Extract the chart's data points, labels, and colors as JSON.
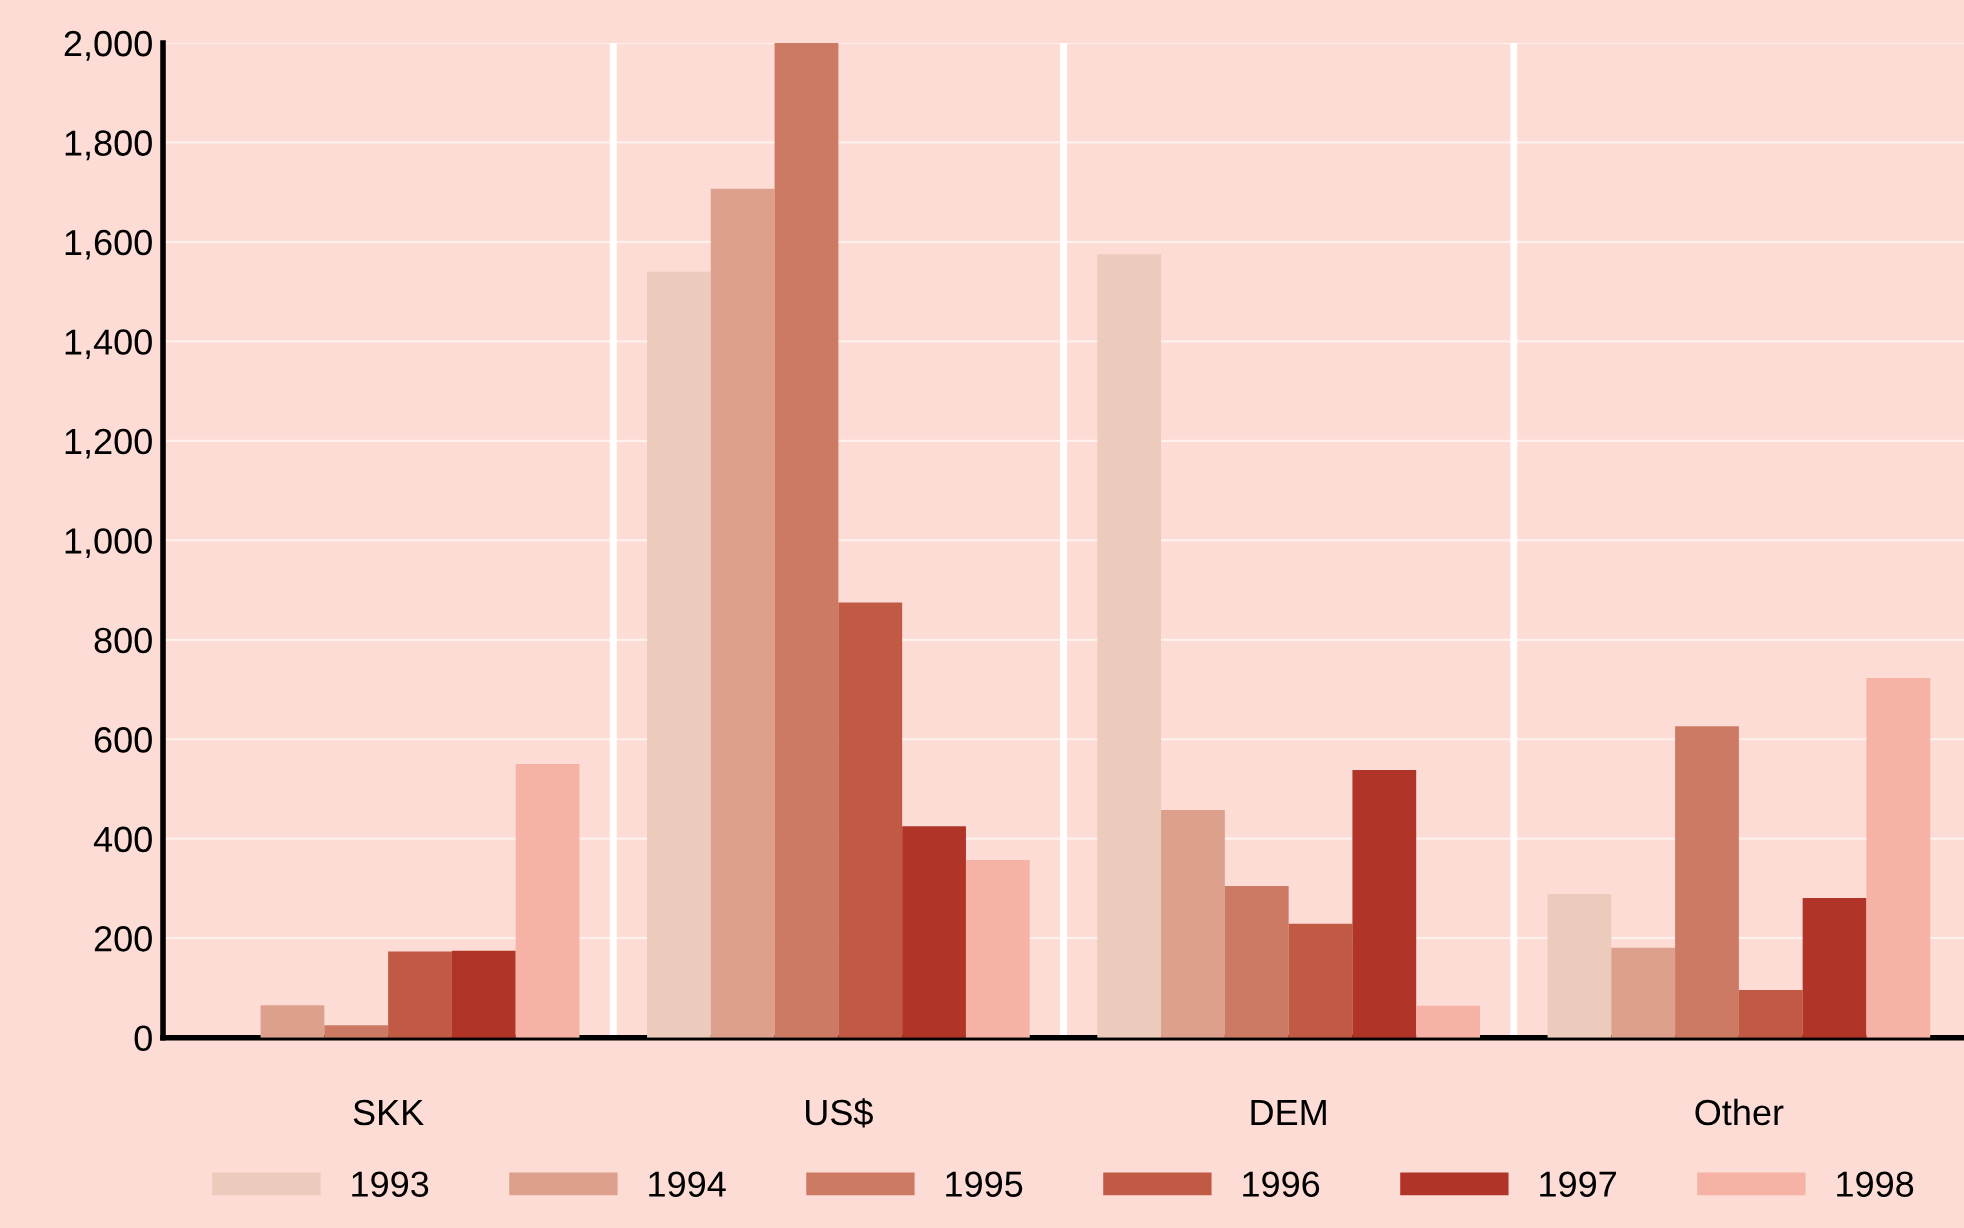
{
  "chart_data": {
    "type": "bar",
    "categories": [
      "SKK",
      "US$",
      "DEM",
      "Other"
    ],
    "series": [
      {
        "name": "1993",
        "color": "#eccbbd",
        "values": [
          0,
          1540,
          1575,
          289
        ]
      },
      {
        "name": "1994",
        "color": "#dca08c",
        "values": [
          65,
          1707,
          458,
          181
        ]
      },
      {
        "name": "1995",
        "color": "#cd7a65",
        "values": [
          25,
          2000,
          305,
          626
        ]
      },
      {
        "name": "1996",
        "color": "#c05a45",
        "values": [
          173,
          875,
          229,
          96
        ]
      },
      {
        "name": "1997",
        "color": "#b03428",
        "values": [
          175,
          425,
          538,
          281
        ]
      },
      {
        "name": "1998",
        "color": "#f6b3a5",
        "values": [
          550,
          357,
          64,
          723
        ]
      }
    ],
    "ylim": [
      0,
      2000
    ],
    "yticks": [
      0,
      {
        "value": 200,
        "label": "200"
      },
      {
        "value": 400,
        "label": "400"
      },
      {
        "value": 600,
        "label": "600"
      },
      {
        "value": 800,
        "label": "800"
      },
      {
        "value": 1000,
        "label": "1,000"
      },
      {
        "value": 1200,
        "label": "1,200"
      },
      {
        "value": 1400,
        "label": "1,400"
      },
      {
        "value": 1600,
        "label": "1,600"
      },
      {
        "value": 1800,
        "label": "1,800"
      },
      {
        "value": 2000,
        "label": "2,000"
      }
    ],
    "grid": true,
    "legend": "bottom"
  }
}
